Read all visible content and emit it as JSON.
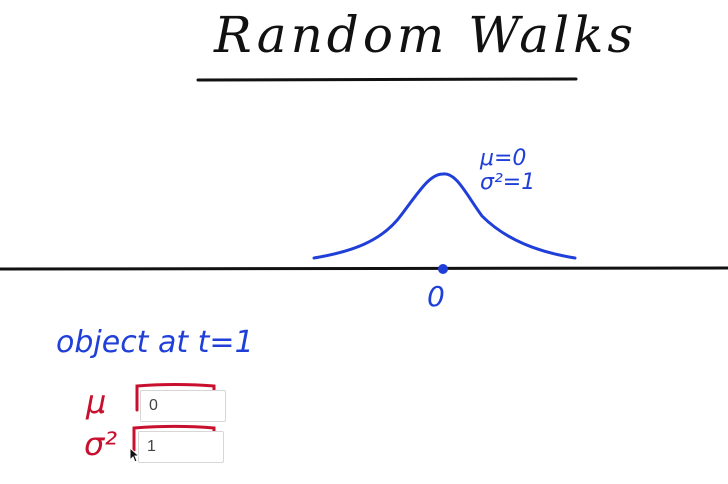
{
  "slide": {
    "title": "Random Walks",
    "curve_labels": {
      "mu": "μ=0",
      "variance": "σ²=1"
    },
    "axis_origin_label": "0",
    "object_label": "object at t=1"
  },
  "fields": {
    "mu": {
      "label": "μ",
      "value": "0"
    },
    "variance": {
      "label": "σ²",
      "value": "1"
    }
  },
  "colors": {
    "ink_black": "#111111",
    "ink_blue": "#1f3fd8",
    "ink_red": "#c8102e"
  },
  "cursor": {
    "icon": "mouse-pointer-icon"
  }
}
